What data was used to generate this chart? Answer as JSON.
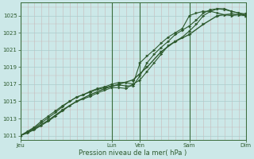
{
  "bg_color": "#cce8e8",
  "grid_major_color": "#aacccc",
  "grid_minor_color": "#dde8e8",
  "line_color": "#2d5a2d",
  "marker_color": "#2d5a2d",
  "text_color": "#2d5a2d",
  "xlabel": "Pression niveau de la mer( hPa )",
  "ylim": [
    1010.5,
    1026.5
  ],
  "yticks": [
    1011,
    1013,
    1015,
    1017,
    1019,
    1021,
    1023,
    1025
  ],
  "xtick_labels": [
    "Jeu",
    "Lun",
    "Ven",
    "Sam",
    "Dim"
  ],
  "xtick_positions": [
    0,
    13,
    17,
    24,
    32
  ],
  "vline_positions": [
    0,
    13,
    17,
    24,
    32
  ],
  "series1": {
    "x": [
      0,
      1,
      2,
      3,
      4,
      5,
      6,
      7,
      8,
      9,
      10,
      11,
      12,
      13,
      14,
      15,
      16,
      17,
      18,
      19,
      20,
      21,
      22,
      23,
      24,
      25,
      26,
      27,
      28,
      29,
      30,
      31,
      32
    ],
    "y": [
      1011,
      1011.3,
      1011.7,
      1012.2,
      1012.7,
      1013.3,
      1013.9,
      1014.5,
      1015.0,
      1015.3,
      1015.6,
      1016.0,
      1016.3,
      1016.6,
      1016.6,
      1016.5,
      1017.0,
      1017.5,
      1018.5,
      1019.5,
      1020.5,
      1021.5,
      1022.0,
      1022.5,
      1023.2,
      1024.0,
      1025.0,
      1025.5,
      1025.8,
      1025.8,
      1025.5,
      1025.3,
      1025.0
    ]
  },
  "series2": {
    "x": [
      0,
      1,
      2,
      3,
      4,
      5,
      6,
      7,
      8,
      9,
      10,
      11,
      12,
      13,
      14,
      15,
      16,
      17,
      18,
      19,
      20,
      21,
      22,
      23,
      24,
      25,
      26,
      27,
      28,
      29,
      30,
      31,
      32
    ],
    "y": [
      1011,
      1011.5,
      1012.0,
      1012.7,
      1013.3,
      1013.9,
      1014.5,
      1015.0,
      1015.5,
      1015.8,
      1016.2,
      1016.5,
      1016.7,
      1017.0,
      1017.2,
      1017.2,
      1017.0,
      1019.5,
      1020.3,
      1021.0,
      1021.8,
      1022.5,
      1023.0,
      1023.5,
      1025.0,
      1025.3,
      1025.5,
      1025.5,
      1025.3,
      1025.1,
      1025.0,
      1025.1,
      1025.2
    ]
  },
  "series3": {
    "x": [
      0,
      1,
      2,
      3,
      4,
      5,
      6,
      7,
      8,
      9,
      10,
      11,
      12,
      13,
      14,
      15,
      16,
      17,
      18,
      19,
      20,
      21,
      22,
      23,
      24,
      25,
      26,
      27,
      28,
      29,
      30,
      31,
      32
    ],
    "y": [
      1011,
      1011.4,
      1011.9,
      1012.5,
      1013.1,
      1013.7,
      1014.4,
      1015.0,
      1015.5,
      1015.8,
      1016.1,
      1016.4,
      1016.6,
      1016.8,
      1016.9,
      1016.8,
      1016.8,
      1018.0,
      1019.5,
      1020.5,
      1021.3,
      1022.0,
      1022.8,
      1023.3,
      1023.8,
      1024.5,
      1025.3,
      1025.7,
      1025.8,
      1025.7,
      1025.5,
      1025.3,
      1025.2
    ]
  },
  "series4": {
    "x": [
      0,
      2,
      4,
      6,
      8,
      10,
      12,
      14,
      16,
      18,
      20,
      22,
      24,
      26,
      28,
      30,
      32
    ],
    "y": [
      1011,
      1011.8,
      1012.8,
      1014.0,
      1015.0,
      1015.8,
      1016.5,
      1017.0,
      1017.5,
      1019.0,
      1020.8,
      1022.0,
      1022.8,
      1024.0,
      1025.0,
      1025.2,
      1025.0
    ]
  }
}
